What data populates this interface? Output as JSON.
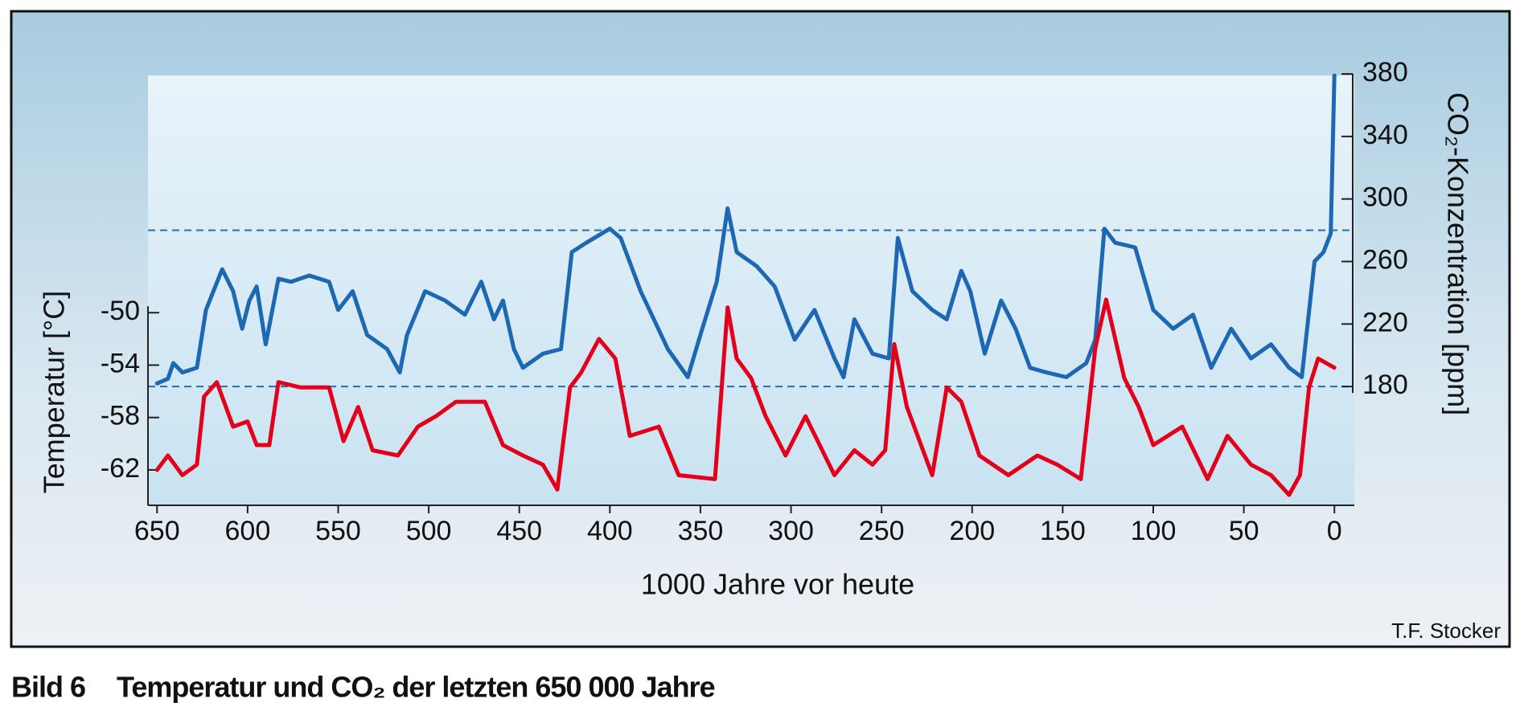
{
  "chart_data": {
    "type": "line",
    "y_label": "Temperatur [°C]",
    "y2_label": "CO₂-Konzentration [ppm]",
    "x_label": "1000 Jahre vor heute",
    "credit": "T.F. Stocker",
    "caption": {
      "label": "Bild 6",
      "text": "Temperatur und CO₂ der letzten 650 000 Jahre"
    },
    "xlim": [
      655,
      -11
    ],
    "xticks": [
      650,
      600,
      550,
      500,
      450,
      400,
      350,
      300,
      250,
      200,
      150,
      100,
      50,
      0
    ],
    "ylim": [
      -64.7,
      -31.9
    ],
    "yticks": [
      -50,
      -54,
      -58,
      -62
    ],
    "y2lim": [
      104,
      379
    ],
    "y2ticks": [
      380,
      340,
      300,
      260,
      220,
      180
    ],
    "y2_reference_lines": [
      280,
      180
    ],
    "series": [
      {
        "color": "#1c68b2",
        "axis": "y2",
        "x": [
          650,
          644,
          641,
          636,
          628,
          623,
          614,
          608,
          603,
          599,
          595,
          590,
          583,
          576,
          566,
          555,
          550,
          542,
          534,
          523,
          516,
          512,
          502,
          491,
          480,
          471,
          464,
          459,
          453,
          448,
          437,
          427,
          421,
          413,
          400,
          394,
          383,
          368,
          357,
          349,
          341,
          335,
          330,
          319,
          309,
          298,
          287,
          276,
          271,
          265,
          255,
          246,
          241,
          233,
          222,
          214,
          206,
          201,
          193,
          184,
          176,
          168,
          159,
          148,
          137,
          132,
          127,
          121,
          110,
          100,
          89,
          78,
          68,
          57,
          46,
          35,
          25,
          18,
          11,
          6,
          2,
          0
        ],
        "values": [
          182,
          185,
          195,
          189,
          192,
          229,
          255,
          241,
          217,
          235,
          244,
          207,
          249,
          247,
          251,
          247,
          229,
          241,
          213,
          204,
          189,
          213,
          241,
          235,
          226,
          247,
          223,
          235,
          204,
          192,
          201,
          204,
          266,
          272,
          281,
          275,
          241,
          204,
          186,
          217,
          247,
          294,
          266,
          257,
          244,
          210,
          229,
          198,
          186,
          223,
          201,
          198,
          275,
          241,
          229,
          223,
          254,
          241,
          201,
          235,
          217,
          192,
          189,
          186,
          195,
          210,
          281,
          272,
          269,
          229,
          217,
          226,
          192,
          217,
          198,
          207,
          192,
          186,
          260,
          266,
          278,
          379
        ]
      },
      {
        "color": "#e3001b",
        "axis": "y",
        "x": [
          650,
          644,
          636,
          628,
          624,
          617,
          608,
          600,
          595,
          588,
          583,
          571,
          555,
          547,
          539,
          531,
          517,
          506,
          496,
          485,
          469,
          459,
          448,
          437,
          429,
          422,
          416,
          406,
          397,
          389,
          373,
          362,
          342,
          335,
          330,
          322,
          314,
          303,
          292,
          276,
          265,
          255,
          248,
          243,
          236,
          222,
          214,
          206,
          196,
          180,
          164,
          153,
          140,
          132,
          126,
          116,
          108,
          100,
          84,
          70,
          59,
          46,
          35,
          25,
          19,
          14,
          9,
          0
        ],
        "values": [
          -62,
          -60.9,
          -62.4,
          -61.6,
          -56.4,
          -55.3,
          -58.7,
          -58.3,
          -60.1,
          -60.1,
          -55.3,
          -55.7,
          -55.7,
          -59.8,
          -57.2,
          -60.5,
          -60.9,
          -58.7,
          -57.9,
          -56.8,
          -56.8,
          -60.1,
          -60.9,
          -61.6,
          -63.5,
          -55.7,
          -54.6,
          -52,
          -53.5,
          -59.4,
          -58.7,
          -62.4,
          -62.7,
          -49.6,
          -53.5,
          -55,
          -57.9,
          -60.9,
          -57.9,
          -62.4,
          -60.5,
          -61.6,
          -60.5,
          -52.4,
          -57.2,
          -62.4,
          -55.7,
          -56.8,
          -60.9,
          -62.4,
          -60.9,
          -61.6,
          -62.7,
          -52.7,
          -49,
          -55,
          -57.2,
          -60.1,
          -58.7,
          -62.7,
          -59.4,
          -61.6,
          -62.4,
          -63.9,
          -62.4,
          -55.7,
          -53.5,
          -54.2
        ]
      }
    ]
  }
}
